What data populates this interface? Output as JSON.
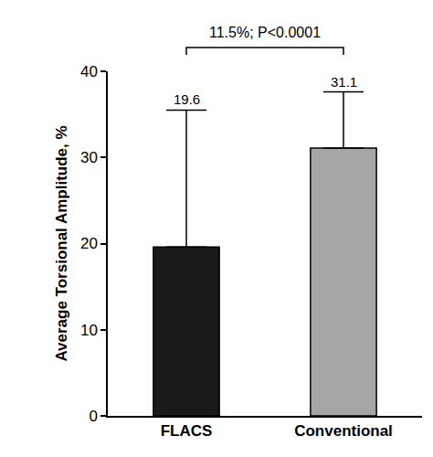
{
  "chart_data": {
    "type": "bar",
    "categories": [
      "FLACS",
      "Conventional"
    ],
    "values": [
      19.6,
      31.1
    ],
    "errors": [
      15.9,
      6.5
    ],
    "colors": [
      "#1a1a1a",
      "#a6a6a6"
    ],
    "ylabel": "Average Torsional Amplitude, %",
    "ylim": [
      0,
      40
    ],
    "yticks": [
      0,
      10,
      20,
      30,
      40
    ],
    "grid": false,
    "data_labels": true,
    "annotations": [
      "11.5%; P<0.0001"
    ]
  }
}
